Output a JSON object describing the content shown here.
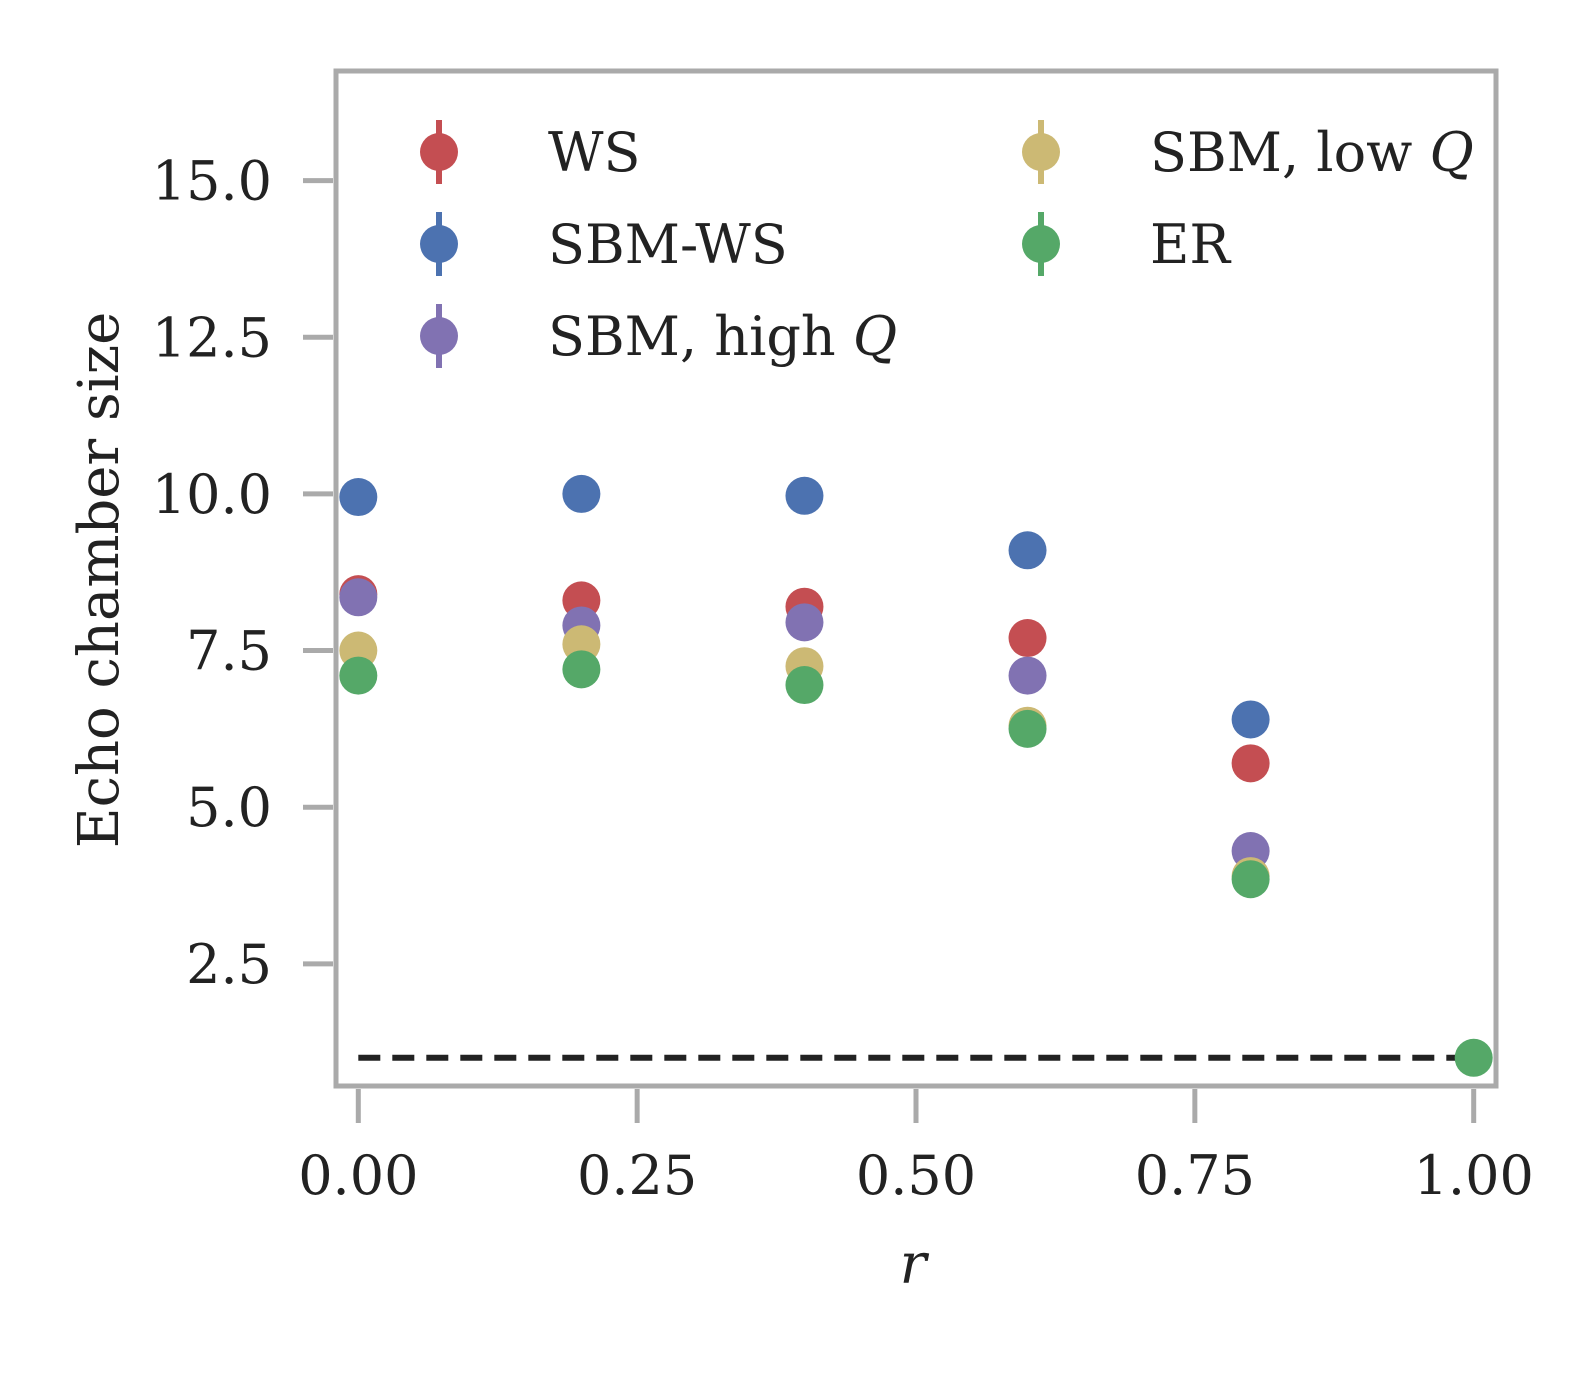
{
  "chart_data": {
    "type": "scatter",
    "xlabel": "r",
    "ylabel": "Echo chamber size",
    "xlim": [
      -0.02,
      1.02
    ],
    "ylim": [
      0.55,
      16.75
    ],
    "xticks": [
      0.0,
      0.25,
      0.5,
      0.75,
      1.0
    ],
    "xtick_labels": [
      "0.00",
      "0.25",
      "0.50",
      "0.75",
      "1.00"
    ],
    "yticks": [
      2.5,
      5.0,
      7.5,
      10.0,
      12.5,
      15.0
    ],
    "ytick_labels": [
      "2.5",
      "5.0",
      "7.5",
      "10.0",
      "12.5",
      "15.0"
    ],
    "grid": false,
    "legend_placement": "top",
    "reference_line": {
      "y": 1.0,
      "style": "dashed",
      "color": "#222222"
    },
    "series": [
      {
        "name": "WS",
        "name_parts": [
          "WS",
          ""
        ],
        "color": "#c44e52",
        "x": [
          0.0,
          0.2,
          0.4,
          0.6,
          0.8
        ],
        "y": [
          8.4,
          8.3,
          8.2,
          7.7,
          5.7
        ]
      },
      {
        "name": "SBM-WS",
        "name_parts": [
          "SBM-WS",
          ""
        ],
        "color": "#4c72b0",
        "x": [
          0.0,
          0.2,
          0.4,
          0.6,
          0.8
        ],
        "y": [
          9.95,
          10.0,
          9.97,
          9.1,
          6.4
        ]
      },
      {
        "name": "SBM, high Q",
        "name_parts": [
          "SBM, high ",
          "Q"
        ],
        "color": "#8172b2",
        "x": [
          0.0,
          0.2,
          0.4,
          0.6,
          0.8
        ],
        "y": [
          8.35,
          7.9,
          7.95,
          7.1,
          4.3
        ]
      },
      {
        "name": "SBM, low Q",
        "name_parts": [
          "SBM, low ",
          "Q"
        ],
        "color": "#ccb974",
        "x": [
          0.0,
          0.2,
          0.4,
          0.6,
          0.8
        ],
        "y": [
          7.5,
          7.6,
          7.25,
          6.3,
          3.9
        ]
      },
      {
        "name": "ER",
        "name_parts": [
          "ER",
          ""
        ],
        "color": "#55a868",
        "x": [
          0.0,
          0.2,
          0.4,
          0.6,
          0.8,
          1.0
        ],
        "y": [
          7.1,
          7.2,
          6.95,
          6.25,
          3.85,
          1.0
        ]
      }
    ]
  }
}
